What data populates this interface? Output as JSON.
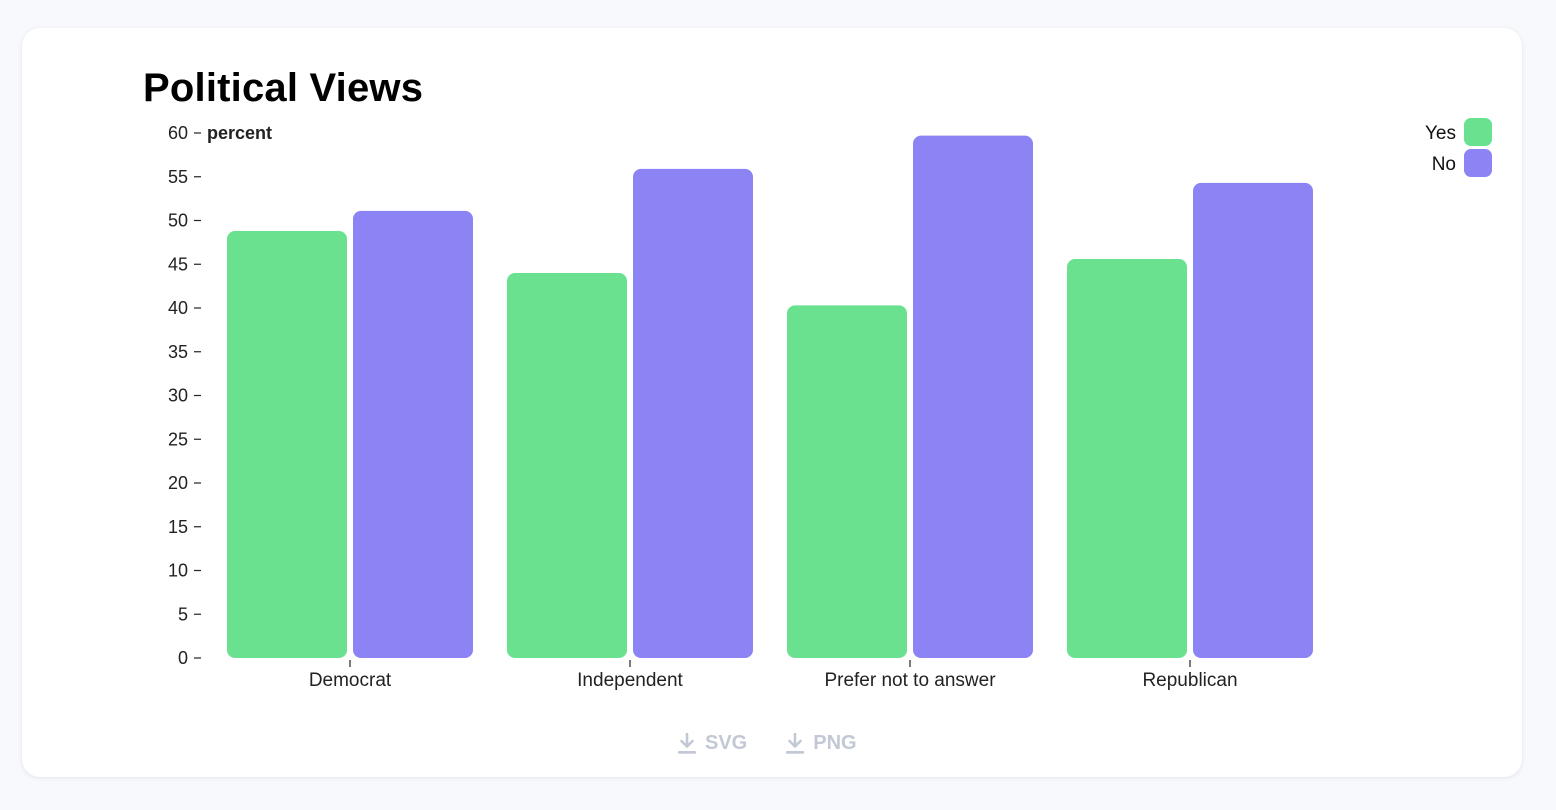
{
  "chart_data": {
    "type": "bar",
    "title": "Political Views",
    "ylabel": "percent",
    "xlabel": "",
    "categories": [
      "Democrat",
      "Independent",
      "Prefer not to answer",
      "Republican"
    ],
    "series": [
      {
        "name": "Yes",
        "color": "#6ae18f",
        "values": [
          48.8,
          44.0,
          40.3,
          45.6
        ]
      },
      {
        "name": "No",
        "color": "#8c83f5",
        "values": [
          51.1,
          55.9,
          59.7,
          54.3
        ]
      }
    ],
    "ylim": [
      0,
      60
    ],
    "yticks": [
      0,
      5,
      10,
      15,
      20,
      25,
      30,
      35,
      40,
      45,
      50,
      55,
      60
    ],
    "grid": false,
    "legend_position": "top-right"
  },
  "downloads": {
    "svg_label": "SVG",
    "png_label": "PNG"
  }
}
